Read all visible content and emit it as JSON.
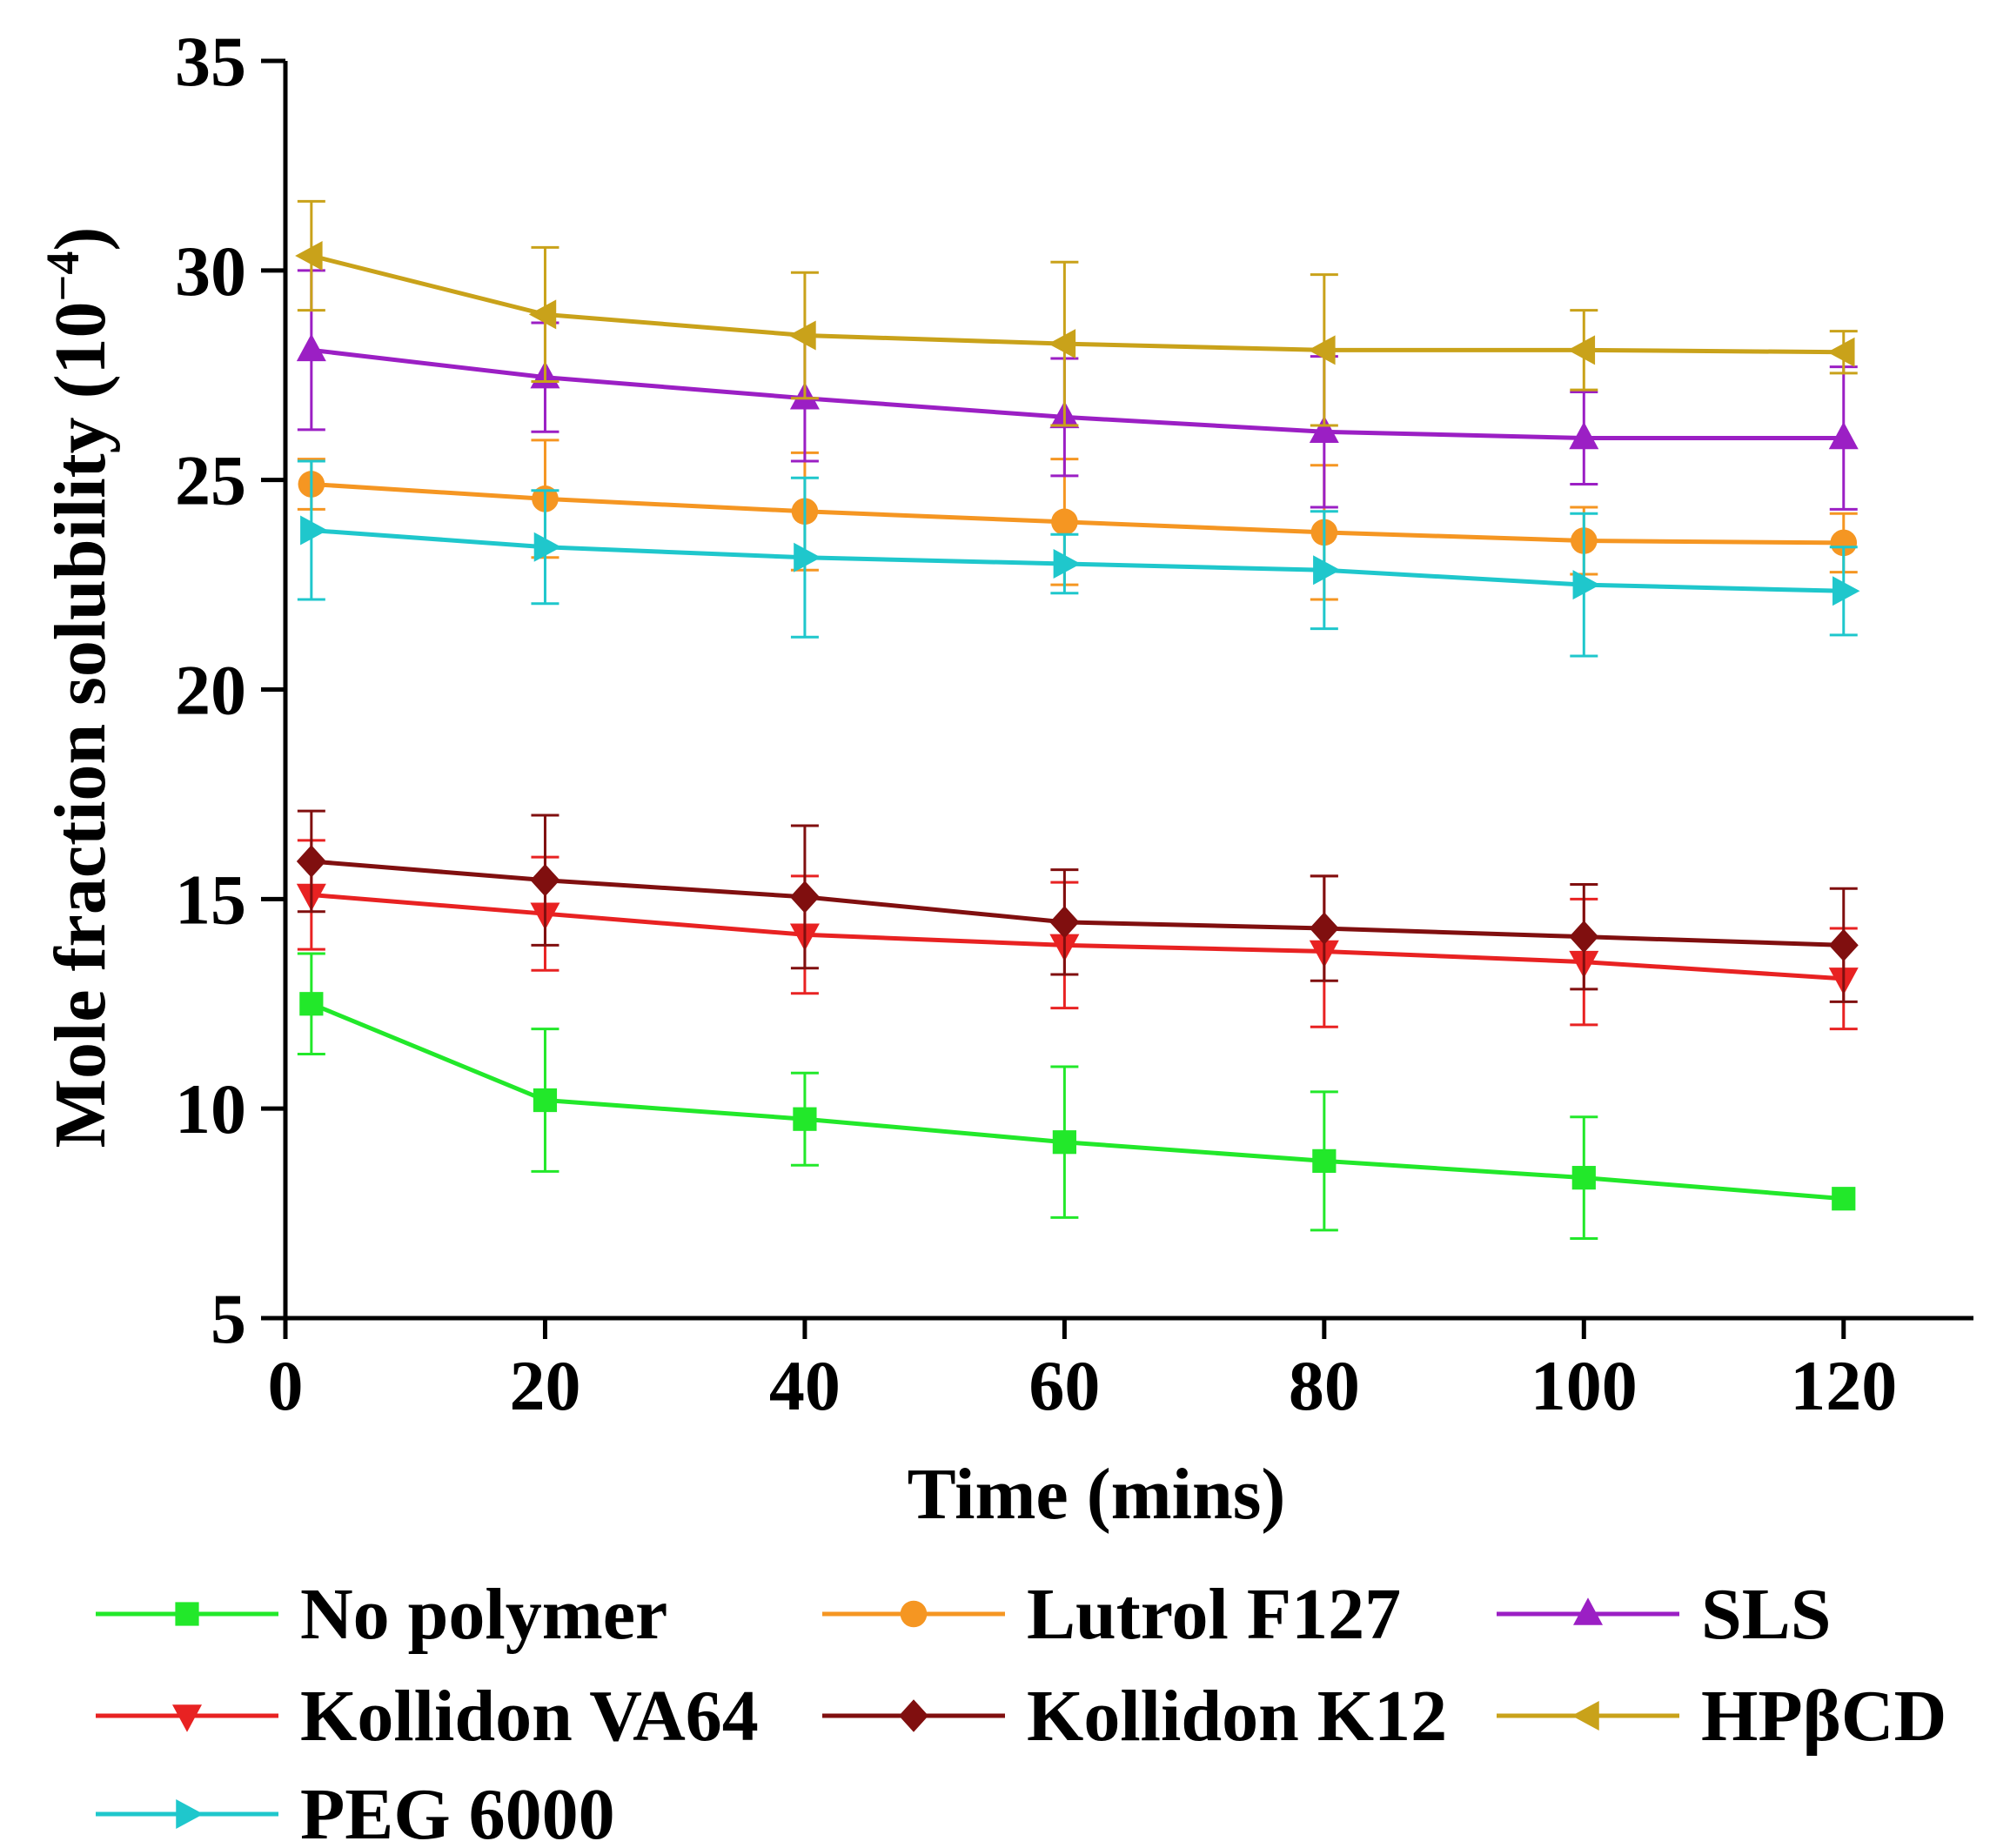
{
  "chart_data": {
    "type": "line",
    "title": "",
    "xlabel": "Time (mins)",
    "ylabel": "Mole fraction solubility (10",
    "ylabel_exponent": "−4",
    "ylabel_close": ")",
    "xlim": [
      0,
      130
    ],
    "ylim": [
      5,
      35
    ],
    "xticks": [
      0,
      20,
      40,
      60,
      80,
      100,
      120
    ],
    "yticks": [
      5,
      10,
      15,
      20,
      25,
      30,
      35
    ],
    "grid": false,
    "legend_position": "bottom",
    "x": [
      2,
      20,
      40,
      60,
      80,
      100,
      120
    ],
    "series": [
      {
        "name": "No polymer",
        "color": "#22e82a",
        "marker": "square",
        "values": [
          12.5,
          10.2,
          9.75,
          9.2,
          8.75,
          8.35,
          7.85
        ],
        "errors": [
          1.2,
          1.7,
          1.1,
          1.8,
          1.65,
          1.45,
          0
        ]
      },
      {
        "name": "Lutrol F127",
        "color": "#f59622",
        "marker": "circle",
        "values": [
          24.9,
          24.55,
          24.25,
          24.0,
          23.75,
          23.55,
          23.5
        ],
        "errors": [
          0.6,
          1.4,
          1.4,
          1.5,
          1.6,
          0.8,
          0.7
        ]
      },
      {
        "name": "SLS",
        "color": "#9b1fc4",
        "marker": "triangle-up",
        "values": [
          28.1,
          27.45,
          26.95,
          26.5,
          26.15,
          26.0,
          26.0
        ],
        "errors": [
          1.9,
          1.3,
          1.5,
          1.4,
          1.8,
          1.1,
          1.7
        ]
      },
      {
        "name": "Kollidon VA64",
        "color": "#e82222",
        "marker": "triangle-down",
        "values": [
          15.1,
          14.65,
          14.15,
          13.9,
          13.75,
          13.5,
          13.1
        ],
        "errors": [
          1.3,
          1.35,
          1.4,
          1.5,
          1.8,
          1.5,
          1.2
        ]
      },
      {
        "name": "Kollidon K12",
        "color": "#800f0f",
        "marker": "diamond",
        "values": [
          15.9,
          15.45,
          15.05,
          14.45,
          14.3,
          14.1,
          13.9
        ],
        "errors": [
          1.2,
          1.55,
          1.7,
          1.25,
          1.25,
          1.25,
          1.35
        ]
      },
      {
        "name": "HPβCD",
        "color": "#c9a21a",
        "marker": "triangle-left",
        "values": [
          30.35,
          28.95,
          28.45,
          28.25,
          28.1,
          28.1,
          28.05
        ],
        "errors": [
          1.3,
          1.6,
          1.5,
          1.95,
          1.8,
          0.95,
          0.5
        ]
      },
      {
        "name": "PEG 6000",
        "color": "#1fc7cc",
        "marker": "triangle-right",
        "values": [
          23.8,
          23.4,
          23.15,
          23.0,
          22.85,
          22.5,
          22.35
        ],
        "errors": [
          1.65,
          1.35,
          1.9,
          0.7,
          1.4,
          1.7,
          1.05
        ]
      }
    ]
  }
}
